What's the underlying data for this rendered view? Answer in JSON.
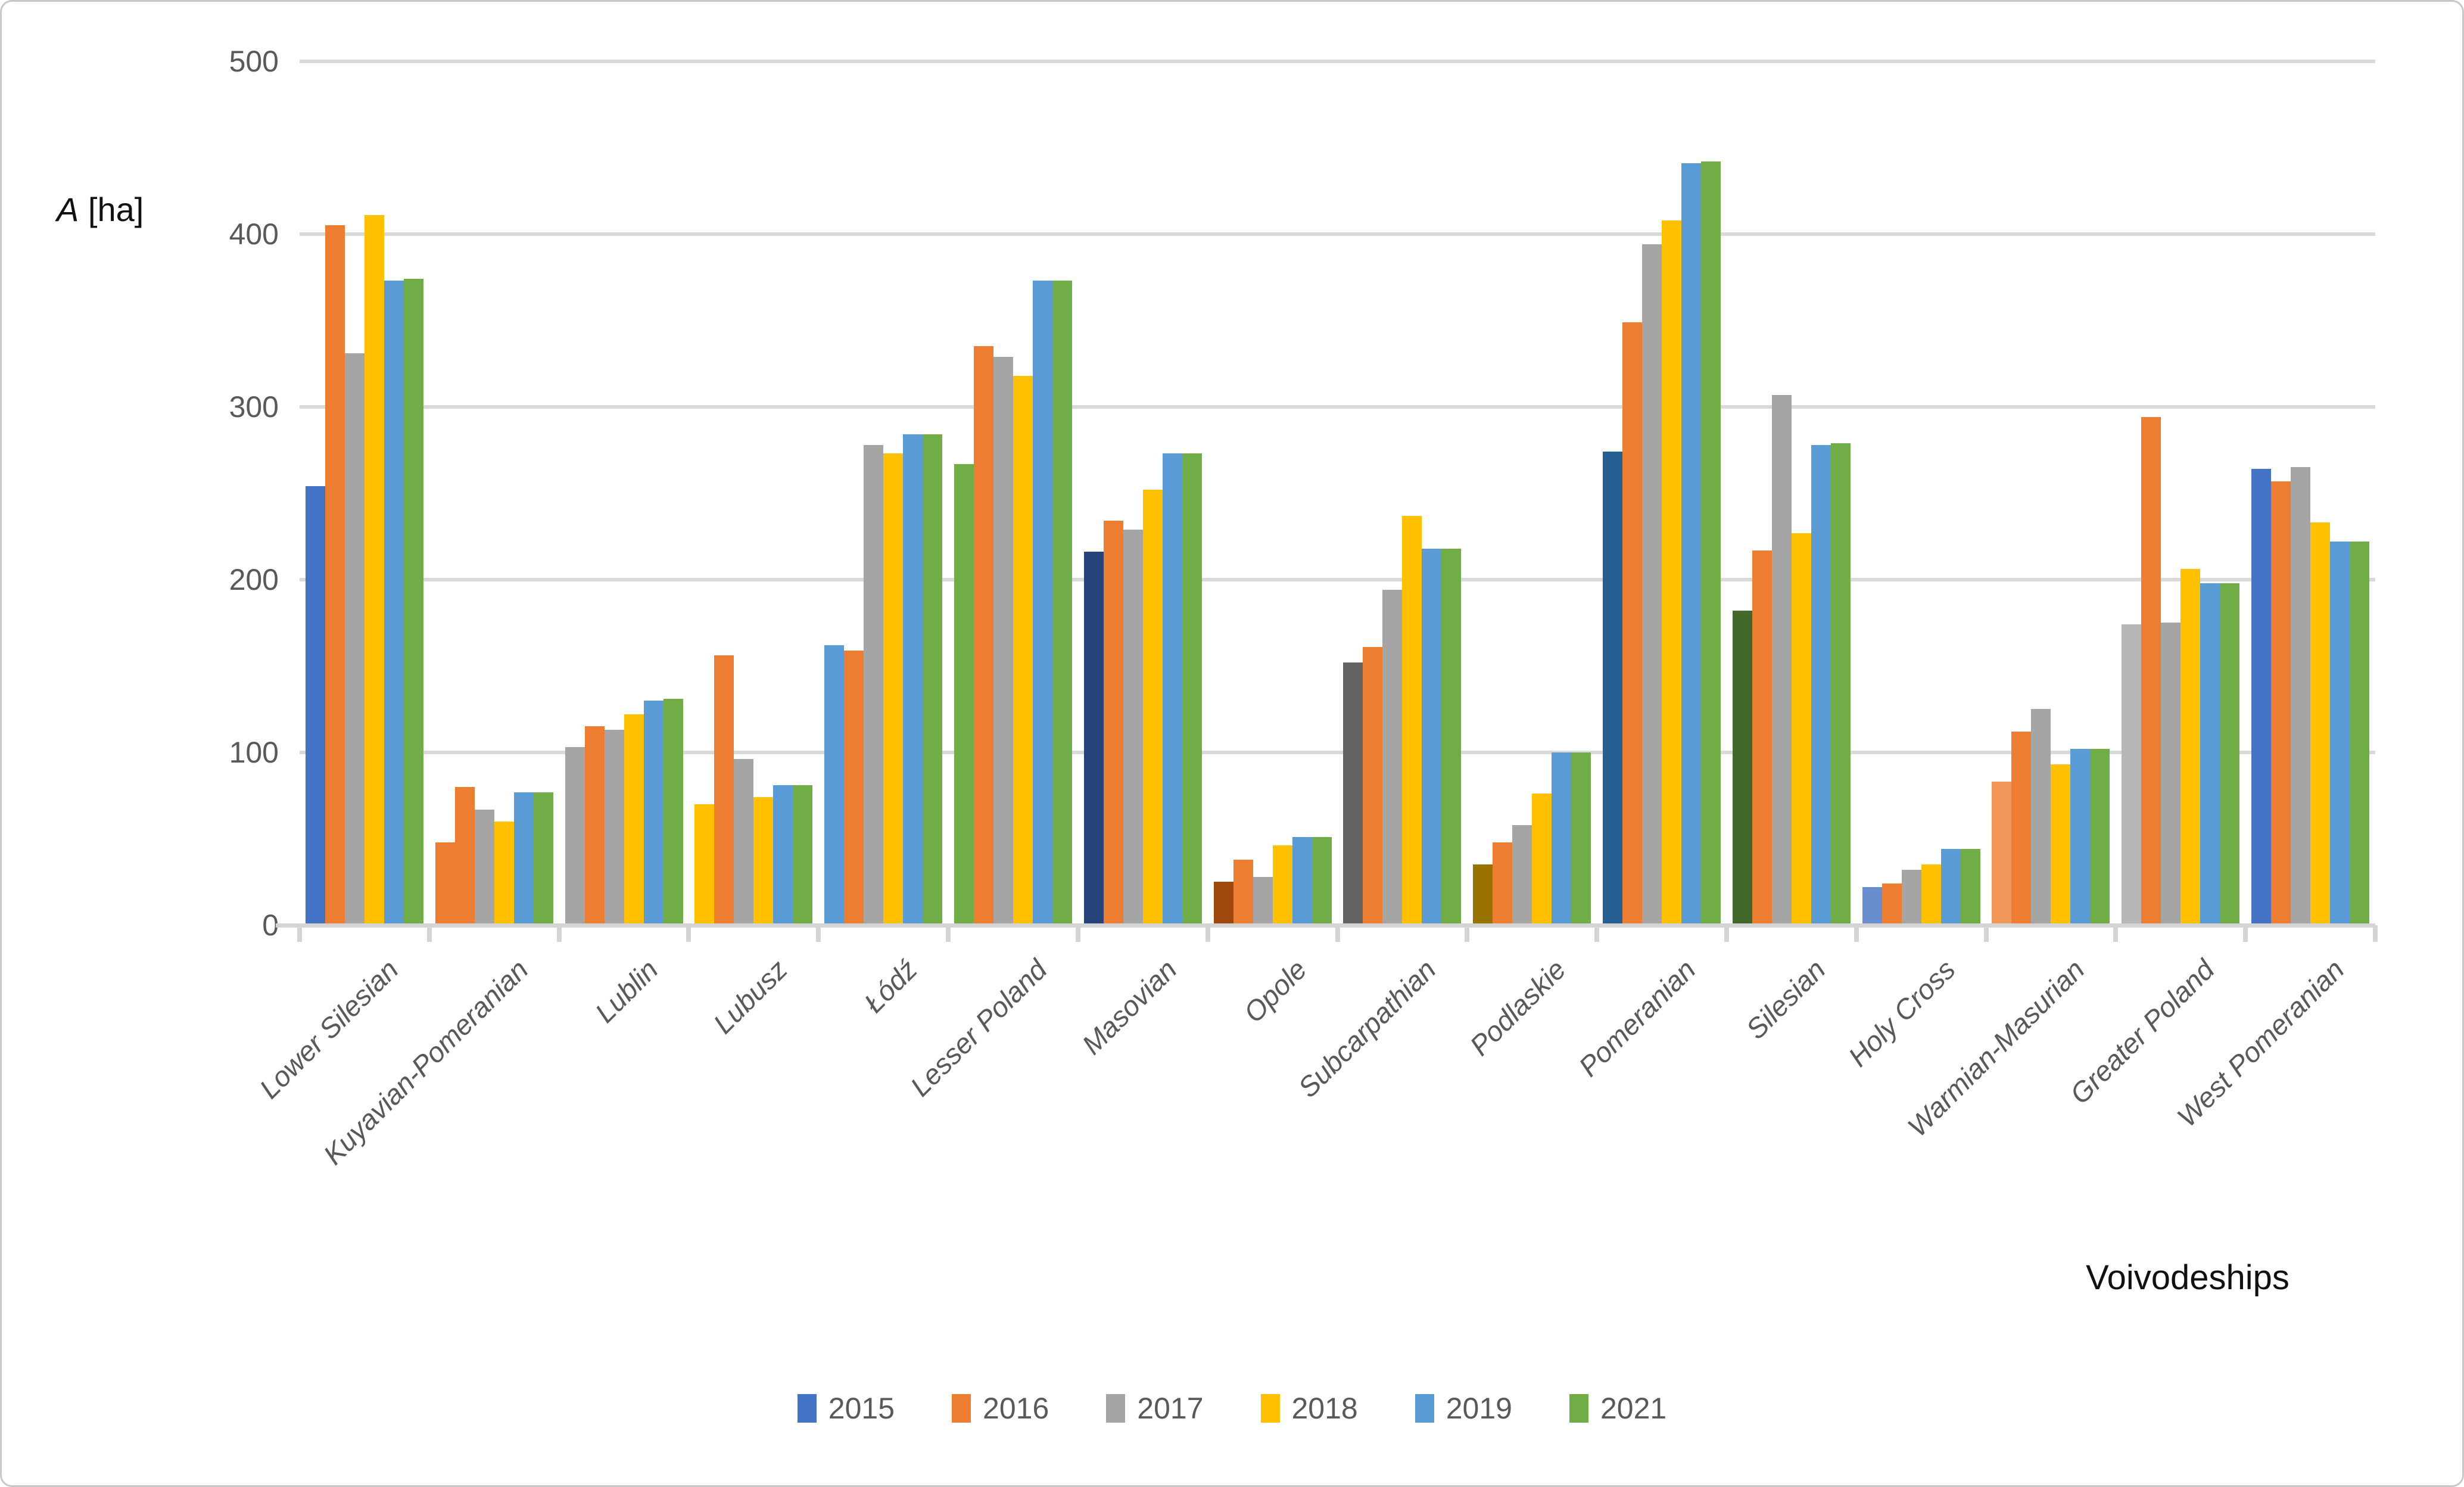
{
  "y_axis": {
    "title_var": "A",
    "title_unit": " [ha]",
    "ticks": [
      0,
      100,
      200,
      300,
      400,
      500
    ]
  },
  "x_axis": {
    "title": "Voivodeships"
  },
  "legend": [
    {
      "label": "2015",
      "color": "#4472C4"
    },
    {
      "label": "2016",
      "color": "#ED7D31"
    },
    {
      "label": "2017",
      "color": "#A5A5A5"
    },
    {
      "label": "2018",
      "color": "#FFC000"
    },
    {
      "label": "2019",
      "color": "#5B9BD5"
    },
    {
      "label": "2021",
      "color": "#70AD47"
    }
  ],
  "chart_data": {
    "type": "bar",
    "title": "",
    "xlabel": "Voivodeships",
    "ylabel": "A [ha]",
    "ylim": [
      0,
      500
    ],
    "grid": true,
    "legend_position": "bottom",
    "categories": [
      "Lower Silesian",
      "Kuyavian-Pomeranian",
      "Lublin",
      "Lubusz",
      "Łódź",
      "Lesser Poland",
      "Masovian",
      "Opole",
      "Subcarpathian",
      "Podlaskie",
      "Pomeranian",
      "Silesian",
      "Holy Cross",
      "Warmian-Masurian",
      "Greater Poland",
      "West Pomeranian"
    ],
    "series": [
      {
        "name": "2015",
        "values": [
          253,
          47,
          102,
          69,
          161,
          266,
          215,
          24,
          151,
          34,
          273,
          181,
          21,
          82,
          173,
          263
        ],
        "color": "#4472C4",
        "point_colors": [
          "#4472C4",
          "#ED7D31",
          "#A5A5A5",
          "#FFC000",
          "#5B9BD5",
          "#70AD47",
          "#264478",
          "#9E480E",
          "#636363",
          "#997300",
          "#255E91",
          "#43682B",
          "#698ED0",
          "#F1975A",
          "#B7B7B7",
          "#4472C4"
        ]
      },
      {
        "name": "2016",
        "color": "#ED7D31",
        "values": [
          404,
          79,
          114,
          155,
          158,
          334,
          233,
          37,
          160,
          47,
          348,
          216,
          23,
          111,
          293,
          256
        ]
      },
      {
        "name": "2017",
        "color": "#A5A5A5",
        "values": [
          330,
          66,
          112,
          95,
          277,
          328,
          228,
          27,
          193,
          57,
          393,
          306,
          31,
          124,
          174,
          264
        ]
      },
      {
        "name": "2018",
        "color": "#FFC000",
        "values": [
          410,
          59,
          121,
          73,
          272,
          317,
          251,
          45,
          236,
          75,
          407,
          226,
          34,
          92,
          205,
          232
        ]
      },
      {
        "name": "2019",
        "color": "#5B9BD5",
        "values": [
          372,
          76,
          129,
          80,
          283,
          372,
          272,
          50,
          217,
          99,
          440,
          277,
          43,
          101,
          197,
          221
        ]
      },
      {
        "name": "2021",
        "color": "#70AD47",
        "values": [
          373,
          76,
          130,
          80,
          283,
          372,
          272,
          50,
          217,
          99,
          441,
          278,
          43,
          101,
          197,
          221
        ]
      }
    ]
  },
  "geometry_note": "bar chart, 16 voivodeship groups x 6 year series"
}
